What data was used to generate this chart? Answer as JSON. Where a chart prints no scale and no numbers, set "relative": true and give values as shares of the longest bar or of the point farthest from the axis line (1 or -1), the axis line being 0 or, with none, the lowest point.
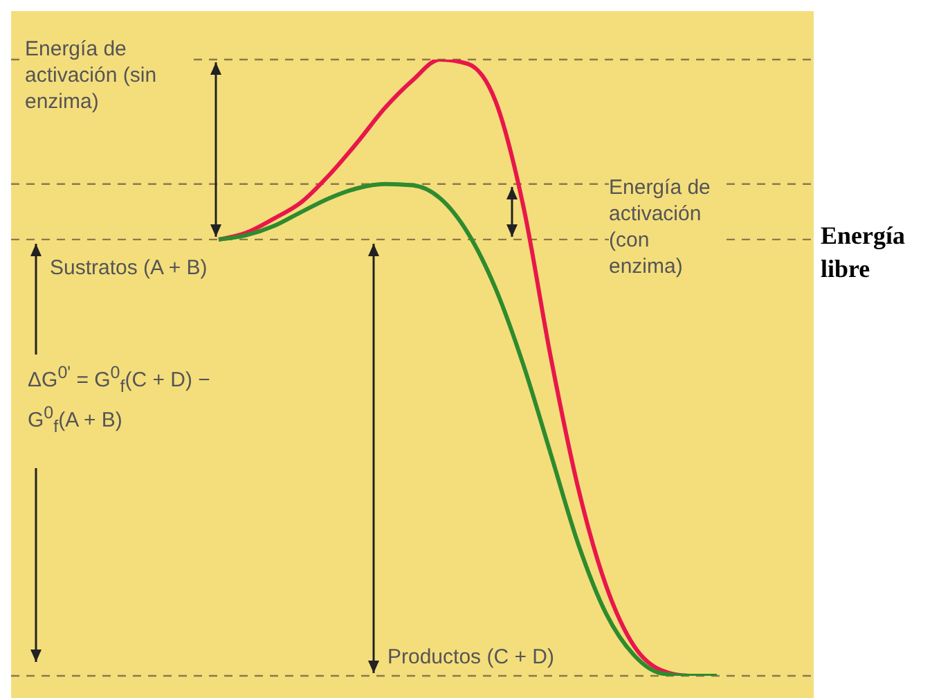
{
  "chart_data": {
    "type": "line",
    "relative": true,
    "ylabel": "Energía libre",
    "marker": "none",
    "categories": [
      null,
      null,
      null,
      null,
      null,
      null,
      null,
      null,
      null,
      null,
      null,
      null,
      null,
      null,
      null,
      null,
      null,
      null,
      null
    ],
    "series": [
      {
        "color": "#e8174a",
        "values": [
          0.708,
          0.719,
          0.742,
          0.769,
          0.813,
          0.865,
          0.921,
          0.966,
          1,
          0.993,
          0.933,
          0.764,
          0.517,
          0.303,
          0.146,
          0.049,
          0.009,
          0,
          0
        ]
      },
      {
        "color": "#2e8b2e",
        "values": [
          0.708,
          0.715,
          0.73,
          0.753,
          0.775,
          0.791,
          0.798,
          0.796,
          0.775,
          0.719,
          0.629,
          0.506,
          0.36,
          0.213,
          0.101,
          0.034,
          0.004,
          0,
          0
        ]
      }
    ],
    "ref_lines": [
      {
        "axis": "y",
        "value": 1,
        "color": "#8a7a4a",
        "line_style": "dashed"
      },
      {
        "axis": "y",
        "value": 0.798,
        "color": "#8a7a4a",
        "line_style": "dashed"
      },
      {
        "axis": "y",
        "value": 0.708,
        "color": "#8a7a4a",
        "line_style": "dashed"
      },
      {
        "axis": "y",
        "value": 0,
        "color": "#8a7a4a",
        "line_style": "dashed"
      }
    ],
    "annotations": [
      "Energía de activación (sin enzima)",
      "Energía de activación (con enzima)",
      "Sustratos (A + B)",
      "ΔG$^{0'}$ = G$^{0}$$_{f}$(C + D) − G$^{0}$$_{f}$(A + B)",
      "Productos (C + D)"
    ]
  }
}
